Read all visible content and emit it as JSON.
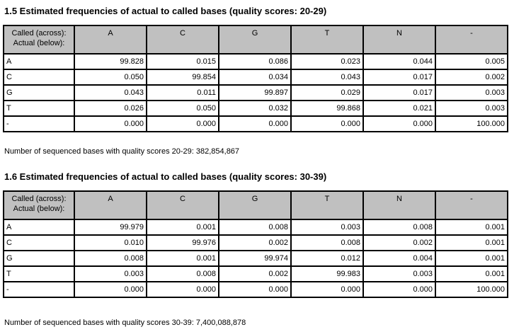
{
  "colors": {
    "page_background": "#ffffff",
    "table_header_background": "#c0c0c0",
    "table_border": "#000000",
    "text": "#000000"
  },
  "sections": [
    {
      "heading": "1.5 Estimated frequencies of actual to called bases (quality scores: 20-29)",
      "table": {
        "corner": [
          "Called (across):",
          "Actual (below):"
        ],
        "columns": [
          "A",
          "C",
          "G",
          "T",
          "N",
          "-"
        ],
        "rows": [
          {
            "label": "A",
            "values": [
              "99.828",
              "0.015",
              "0.086",
              "0.023",
              "0.044",
              "0.005"
            ]
          },
          {
            "label": "C",
            "values": [
              "0.050",
              "99.854",
              "0.034",
              "0.043",
              "0.017",
              "0.002"
            ]
          },
          {
            "label": "G",
            "values": [
              "0.043",
              "0.011",
              "99.897",
              "0.029",
              "0.017",
              "0.003"
            ]
          },
          {
            "label": "T",
            "values": [
              "0.026",
              "0.050",
              "0.032",
              "99.868",
              "0.021",
              "0.003"
            ]
          },
          {
            "label": "-",
            "values": [
              "0.000",
              "0.000",
              "0.000",
              "0.000",
              "0.000",
              "100.000"
            ]
          }
        ]
      },
      "footnote": "Number of sequenced bases with quality scores 20-29: 382,854,867"
    },
    {
      "heading": "1.6 Estimated frequencies of actual to called bases (quality scores: 30-39)",
      "table": {
        "corner": [
          "Called (across):",
          "Actual (below):"
        ],
        "columns": [
          "A",
          "C",
          "G",
          "T",
          "N",
          "-"
        ],
        "rows": [
          {
            "label": "A",
            "values": [
              "99.979",
              "0.001",
              "0.008",
              "0.003",
              "0.008",
              "0.001"
            ]
          },
          {
            "label": "C",
            "values": [
              "0.010",
              "99.976",
              "0.002",
              "0.008",
              "0.002",
              "0.001"
            ]
          },
          {
            "label": "G",
            "values": [
              "0.008",
              "0.001",
              "99.974",
              "0.012",
              "0.004",
              "0.001"
            ]
          },
          {
            "label": "T",
            "values": [
              "0.003",
              "0.008",
              "0.002",
              "99.983",
              "0.003",
              "0.001"
            ]
          },
          {
            "label": "-",
            "values": [
              "0.000",
              "0.000",
              "0.000",
              "0.000",
              "0.000",
              "100.000"
            ]
          }
        ]
      },
      "footnote": "Number of sequenced bases with quality scores 30-39: 7,400,088,878"
    }
  ]
}
